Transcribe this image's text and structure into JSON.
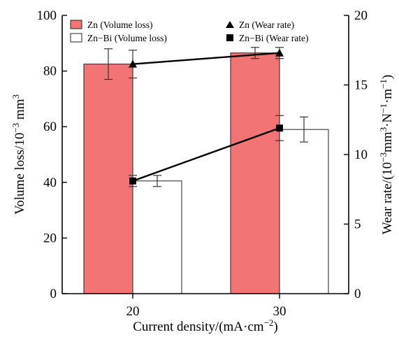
{
  "chart_data": {
    "type": "bar",
    "categories": [
      "20",
      "30"
    ],
    "xlabel": "Current density/(mA·cm",
    "xlabel_sup": "−2",
    "xlabel_end": ")",
    "ylabel_left": "Volume loss/10",
    "ylabel_left_sup": "−3",
    "ylabel_left_end": " mm",
    "ylabel_left_sup2": "3",
    "ylabel_right_a": "Wear rate/(10",
    "ylabel_right_sup1": "−3",
    "ylabel_right_b": "mm",
    "ylabel_right_sup2": "3",
    "ylabel_right_c": "·N",
    "ylabel_right_sup3": "−1",
    "ylabel_right_d": "·m",
    "ylabel_right_sup4": "−1",
    "ylabel_right_e": ")",
    "ylim_left": [
      0,
      100
    ],
    "yticks_left": [
      "0",
      "20",
      "40",
      "60",
      "80",
      "100"
    ],
    "ylim_right": [
      0,
      20
    ],
    "yticks_right": [
      "0",
      "5",
      "10",
      "15",
      "20"
    ],
    "bar_series": [
      {
        "name": "Zn (Volume loss)",
        "values": [
          82.5,
          86.5
        ],
        "errors": [
          5.5,
          2.0
        ],
        "color": "#f27474"
      },
      {
        "name": "Zn−Bi (Volume loss)",
        "values": [
          40.5,
          59.0
        ],
        "errors": [
          2.0,
          4.5
        ],
        "color": "#ffffff"
      }
    ],
    "line_series": [
      {
        "name": "Zn (Wear rate)",
        "values": [
          16.5,
          17.3
        ],
        "errors": [
          1.0,
          0.4
        ],
        "marker": "triangle"
      },
      {
        "name": "Zn−Bi (Wear rate)",
        "values": [
          8.1,
          11.9
        ],
        "errors": [
          0.4,
          0.9
        ],
        "marker": "square"
      }
    ],
    "legend_position": "top"
  }
}
